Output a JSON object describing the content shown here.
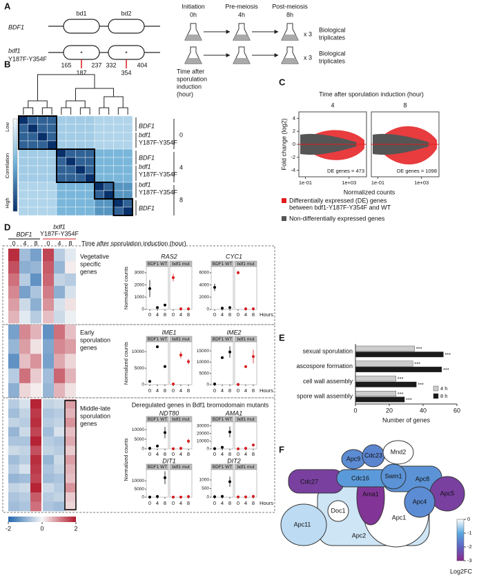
{
  "panel_labels": [
    "A",
    "B",
    "C",
    "D",
    "E",
    "F"
  ],
  "panel_a": {
    "domains": [
      "bd1",
      "bd2"
    ],
    "wt": "BDF1",
    "mut": "bdf1",
    "mut_suffix": "Y187F-Y354F",
    "positions": [
      165,
      237,
      332,
      404
    ],
    "mutations": [
      187,
      354
    ],
    "mutation_mark": "*",
    "mutation_color": "#d7191c",
    "stages": [
      [
        "Initiation",
        "0h"
      ],
      [
        "Pre-meiosis",
        "4h"
      ],
      [
        "Post-meiosis",
        "8h"
      ]
    ],
    "replicates": "x 3",
    "replicates_label": [
      "Biological",
      "triplicates"
    ]
  },
  "panel_b": {
    "title": [
      "Time after",
      "sporulation",
      "induction",
      "(hour)"
    ],
    "colorbar": {
      "label": "Correlation",
      "low": "Low",
      "high": "High",
      "colors": [
        "#f4f9fd",
        "#6baed6",
        "#08306b"
      ]
    },
    "samples": [
      {
        "label": [
          "BDF1"
        ],
        "color": "#000000"
      },
      {
        "label": [
          "bdf1",
          "Y187F-Y354F"
        ],
        "color": "#d7191c"
      },
      {
        "label": [
          "BDF1"
        ],
        "color": "#000000"
      },
      {
        "label": [
          "bdf1",
          "Y187F-Y354F"
        ],
        "color": "#d7191c"
      },
      {
        "label": [
          "bdf1",
          "Y187F-Y354F"
        ],
        "color": "#d7191c"
      },
      {
        "label": [
          "BDF1"
        ],
        "color": "#000000"
      }
    ],
    "times": [
      0,
      4,
      8
    ],
    "groups": [
      4,
      4,
      2,
      2
    ],
    "matrix": [
      [
        1,
        0.8,
        0.8,
        0.8,
        0.3,
        0.3,
        0.3,
        0.3,
        0.25,
        0.25,
        0.25,
        0.25
      ],
      [
        0.8,
        1,
        0.8,
        0.8,
        0.3,
        0.3,
        0.3,
        0.3,
        0.25,
        0.25,
        0.25,
        0.25
      ],
      [
        0.8,
        0.8,
        1,
        0.8,
        0.3,
        0.3,
        0.3,
        0.3,
        0.25,
        0.25,
        0.25,
        0.25
      ],
      [
        0.8,
        0.8,
        0.8,
        1,
        0.3,
        0.3,
        0.3,
        0.3,
        0.25,
        0.25,
        0.25,
        0.25
      ],
      [
        0.3,
        0.3,
        0.3,
        0.3,
        1,
        0.8,
        0.8,
        0.8,
        0.45,
        0.45,
        0.45,
        0.45
      ],
      [
        0.3,
        0.3,
        0.3,
        0.3,
        0.8,
        1,
        0.8,
        0.8,
        0.45,
        0.45,
        0.45,
        0.45
      ],
      [
        0.3,
        0.3,
        0.3,
        0.3,
        0.8,
        0.8,
        1,
        0.8,
        0.45,
        0.45,
        0.45,
        0.45
      ],
      [
        0.3,
        0.3,
        0.3,
        0.3,
        0.8,
        0.8,
        0.8,
        1,
        0.45,
        0.45,
        0.45,
        0.45
      ],
      [
        0.25,
        0.25,
        0.25,
        0.25,
        0.45,
        0.45,
        0.45,
        0.45,
        1,
        0.8,
        0.6,
        0.6
      ],
      [
        0.25,
        0.25,
        0.25,
        0.25,
        0.45,
        0.45,
        0.45,
        0.45,
        0.8,
        1,
        0.6,
        0.6
      ],
      [
        0.25,
        0.25,
        0.25,
        0.25,
        0.45,
        0.45,
        0.45,
        0.45,
        0.6,
        0.6,
        1,
        0.8
      ],
      [
        0.25,
        0.25,
        0.25,
        0.25,
        0.45,
        0.45,
        0.45,
        0.45,
        0.6,
        0.6,
        0.8,
        1
      ]
    ]
  },
  "panel_c": {
    "title": "Time after sporulation induction (hour)",
    "facets": [
      4,
      8
    ],
    "de_labels": [
      "DE genes = 473",
      "DE genes = 1098"
    ],
    "ylabel": "Fold change (log2)",
    "xlabel": "Normalized counts",
    "ylim": [
      -5,
      5
    ],
    "yticks": [
      4,
      2,
      0,
      -2,
      -4
    ],
    "xlim": [
      -1.6,
      4.6
    ],
    "xticks": [
      {
        "value": -1,
        "label": "1e-01"
      },
      {
        "value": 3,
        "label": "1e+03"
      }
    ],
    "legend": [
      {
        "name": [
          "Differentially expressed (DE) genes",
          "between bdf1-Y187F-Y354F and WT"
        ],
        "color": "#e41a1c"
      },
      {
        "name": [
          "Non-differentially expressed genes"
        ],
        "color": "#555555"
      }
    ]
  },
  "panel_d": {
    "header": {
      "wt": "BDF1",
      "mut": [
        "bdf1",
        "Y187F-Y354F"
      ]
    },
    "columns": [
      0,
      4,
      8,
      0,
      4,
      8
    ],
    "time_label": "Time after sporulation induction (hour)",
    "colorscale": {
      "lim": [
        -2,
        2
      ],
      "ticks": [
        -2,
        0,
        2
      ],
      "colors": [
        "#2166ac",
        "#f7f7f7",
        "#b2182b"
      ]
    },
    "ylabel": "Normalized counts",
    "xlabel": "Hours",
    "xlim": [
      0,
      8
    ],
    "xticks": [
      0,
      4,
      8
    ],
    "strips": [
      "BDF1 WT",
      "bdf1 mut"
    ],
    "point_colors": [
      "#000000",
      "#d7191c"
    ],
    "sections": [
      {
        "label": [
          "Vegetative",
          "specific",
          "genes"
        ],
        "rows": [
          [
            1.8,
            -0.8,
            -1.2,
            1.6,
            -0.6,
            -0.2
          ],
          [
            1.5,
            -1.0,
            -0.9,
            1.4,
            -0.9,
            0.1
          ],
          [
            1.2,
            -0.6,
            -1.4,
            1.3,
            -0.5,
            -0.6
          ],
          [
            1.0,
            -1.2,
            -0.7,
            1.1,
            -1.0,
            -0.3
          ],
          [
            0.8,
            -0.4,
            -1.0,
            0.9,
            -0.3,
            0.2
          ],
          [
            0.6,
            -0.2,
            -0.6,
            0.5,
            -0.4,
            -0.1
          ]
        ],
        "genes": [
          {
            "name": "RAS2",
            "ylim": [
              0,
              3500
            ],
            "yticks": [
              0,
              1000,
              2000,
              3000
            ],
            "wt": [
              1700,
              150,
              350
            ],
            "wt_err": [
              700,
              0,
              0
            ],
            "mut": [
              2600,
              50,
              50
            ],
            "mut_err": [
              300,
              0,
              0
            ]
          },
          {
            "name": "CYC1",
            "ylim": [
              0,
              7000
            ],
            "yticks": [
              0,
              2000,
              4000,
              6000
            ],
            "wt": [
              3600,
              200,
              300
            ],
            "wt_err": [
              600,
              0,
              0
            ],
            "mut": [
              6000,
              100,
              100
            ],
            "mut_err": [
              300,
              0,
              0
            ]
          }
        ]
      },
      {
        "label": [
          "Early",
          "sporulation",
          "genes"
        ],
        "rows": [
          [
            -1.2,
            1.0,
            0.6,
            -1.4,
            1.2,
            0.5
          ],
          [
            -0.9,
            0.8,
            0.2,
            -1.1,
            1.0,
            0.8
          ],
          [
            -1.4,
            0.5,
            0.9,
            -1.2,
            0.7,
            0.3
          ],
          [
            -0.6,
            1.2,
            0.4,
            -0.8,
            1.3,
            0.6
          ],
          [
            -1.0,
            0.3,
            0.1,
            -0.9,
            0.6,
            0.2
          ]
        ],
        "genes": [
          {
            "name": "IME1",
            "ylim": [
              0,
              13000
            ],
            "yticks": [
              0,
              5000,
              10000
            ],
            "wt": [
              1000,
              11500,
              5500
            ],
            "wt_err": [
              0,
              0,
              0
            ],
            "mut": [
              200,
              9000,
              7000
            ],
            "mut_err": [
              0,
              1000,
              800
            ]
          },
          {
            "name": "IME2",
            "ylim": [
              0,
              19000
            ],
            "yticks": [
              0,
              5000,
              10000,
              15000
            ],
            "wt": [
              300,
              12000,
              14500
            ],
            "wt_err": [
              0,
              0,
              2500
            ],
            "mut": [
              100,
              8000,
              12500
            ],
            "mut_err": [
              0,
              600,
              3000
            ]
          }
        ]
      },
      {
        "label": [
          "Middle-late",
          "sporulation",
          "genes"
        ],
        "title": "Deregulated genes in Bdf1 bromodomain mutants",
        "rows": [
          [
            -0.6,
            -0.3,
            1.9,
            -0.5,
            -0.4,
            0.8
          ],
          [
            -0.8,
            -0.5,
            1.7,
            -0.7,
            -0.6,
            0.6
          ],
          [
            -0.5,
            -0.6,
            1.8,
            -0.6,
            -0.5,
            0.9
          ],
          [
            -0.9,
            -0.4,
            1.6,
            -0.8,
            -0.3,
            0.5
          ],
          [
            -0.7,
            -0.7,
            1.9,
            -0.6,
            -0.7,
            0.7
          ],
          [
            -0.4,
            -0.5,
            1.5,
            -0.5,
            -0.6,
            0.4
          ],
          [
            -0.8,
            -0.6,
            1.8,
            -0.9,
            -0.4,
            0.8
          ],
          [
            -0.6,
            -0.3,
            1.7,
            -0.7,
            -0.5,
            0.6
          ],
          [
            -0.9,
            -0.8,
            1.6,
            -0.8,
            -0.7,
            0.5
          ],
          [
            -0.5,
            -0.4,
            1.9,
            -0.4,
            -0.6,
            0.9
          ],
          [
            -0.7,
            -0.6,
            1.4,
            -0.6,
            -0.5,
            0.4
          ],
          [
            -0.8,
            -0.7,
            1.2,
            -0.7,
            -0.8,
            0.3
          ]
        ],
        "genes": [
          {
            "name": "NDT80",
            "ylim": [
              0,
              14000
            ],
            "yticks": [
              0,
              5000,
              10000
            ],
            "wt": [
              300,
              1500,
              8500
            ],
            "wt_err": [
              0,
              0,
              3000
            ],
            "mut": [
              100,
              300,
              4000
            ],
            "mut_err": [
              0,
              0,
              1200
            ]
          },
          {
            "name": "AMA1",
            "ylim": [
              0,
              35000
            ],
            "yticks": [
              0,
              10000,
              20000,
              30000
            ],
            "wt": [
              300,
              2000,
              22000
            ],
            "wt_err": [
              0,
              0,
              7000
            ],
            "mut": [
              100,
              800,
              5000
            ],
            "mut_err": [
              0,
              0,
              1500
            ]
          },
          {
            "name": "DIT1",
            "ylim": [
              0,
              17000
            ],
            "yticks": [
              0,
              5000,
              10000
            ],
            "wt": [
              100,
              500,
              12000
            ],
            "wt_err": [
              0,
              0,
              4000
            ],
            "mut": [
              100,
              100,
              400
            ],
            "mut_err": [
              0,
              0,
              0
            ]
          },
          {
            "name": "DIT2",
            "ylim": [
              0,
              1600
            ],
            "yticks": [
              0,
              500,
              1000
            ],
            "wt": [
              30,
              50,
              900
            ],
            "wt_err": [
              0,
              0,
              300
            ],
            "mut": [
              20,
              20,
              50
            ],
            "mut_err": [
              0,
              0,
              0
            ]
          }
        ]
      }
    ]
  },
  "chart_data": {
    "type": "bar",
    "orientation": "horizontal",
    "categories": [
      "sexual sporulation",
      "ascospore formation",
      "cell wall assembly",
      "spore wall assembly"
    ],
    "series": [
      {
        "name": "4 h",
        "color": "#cccccc",
        "values": [
          35,
          34,
          24,
          24
        ],
        "annotations": [
          "***",
          "***",
          "***",
          "***"
        ]
      },
      {
        "name": "8 h",
        "color": "#1a1a1a",
        "values": [
          52,
          51,
          36,
          29
        ],
        "annotations": [
          "***",
          "***",
          "***",
          "***"
        ]
      }
    ],
    "xlim": [
      0,
      60
    ],
    "xticks": [
      0,
      20,
      40,
      60
    ],
    "xlabel": "Number of genes",
    "legend": "bottom-right"
  },
  "panel_f": {
    "nodes": [
      {
        "label": "Apc2",
        "log2fc": -0.3
      },
      {
        "label": "Apc1",
        "log2fc": 0
      },
      {
        "label": "Apc11",
        "log2fc": -0.4
      },
      {
        "label": "Doc1",
        "log2fc": 0
      },
      {
        "label": "Ama1",
        "log2fc": -2.8
      },
      {
        "label": "Cdc27",
        "log2fc": -2.6
      },
      {
        "label": "Apc8",
        "log2fc": -1.3
      },
      {
        "label": "Apc5",
        "log2fc": -2.6
      },
      {
        "label": "Apc4",
        "log2fc": -1.4
      },
      {
        "label": "Cdc16",
        "log2fc": -1.2
      },
      {
        "label": "Apc9",
        "log2fc": -1.4
      },
      {
        "label": "Cdc23",
        "log2fc": -1.5
      },
      {
        "label": "Swm1",
        "log2fc": -1.3
      },
      {
        "label": "Mnd2",
        "log2fc": 0
      }
    ],
    "colorbar": {
      "lim": [
        -3,
        0
      ],
      "ticks": [
        0,
        -1,
        -2,
        -3
      ],
      "label": "Log2FC",
      "colors": [
        "#ffffff",
        "#5aa8e0",
        "#5e62c0",
        "#8b2a8b"
      ]
    }
  }
}
